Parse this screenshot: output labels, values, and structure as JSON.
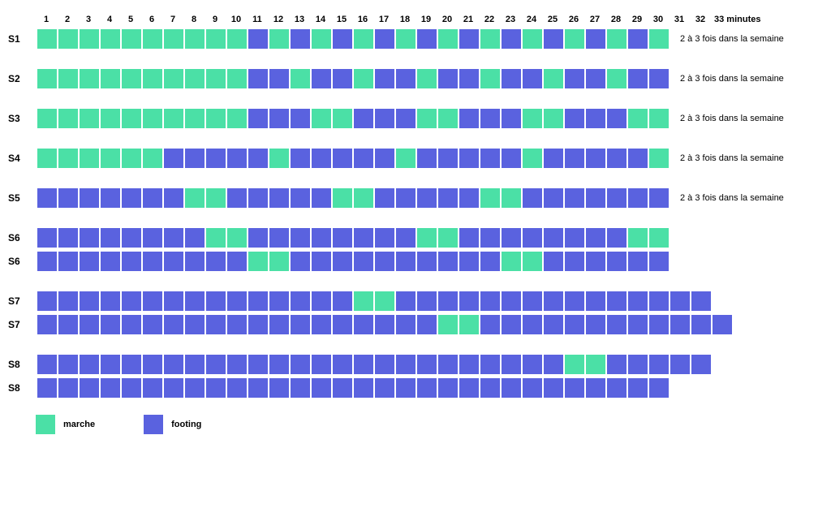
{
  "colors": {
    "marche": "#4be0a6",
    "footing": "#5a62df",
    "background": "#ffffff",
    "text": "#000000"
  },
  "cell": {
    "width": 24,
    "height": 24,
    "gap": 2
  },
  "header": {
    "count": 32,
    "last_label": "33 minutes"
  },
  "legend": {
    "items": [
      {
        "key": "marche",
        "label": "marche"
      },
      {
        "key": "footing",
        "label": "footing"
      }
    ]
  },
  "note_text": "2 à 3 fois dans la semaine",
  "rows": [
    {
      "label": "S1",
      "gap": "first",
      "note": true,
      "cells": [
        "m",
        "m",
        "m",
        "m",
        "m",
        "m",
        "m",
        "m",
        "m",
        "m",
        "f",
        "m",
        "f",
        "m",
        "f",
        "m",
        "f",
        "m",
        "f",
        "m",
        "f",
        "m",
        "f",
        "m",
        "f",
        "m",
        "f",
        "m",
        "f",
        "m"
      ]
    },
    {
      "label": "S2",
      "gap": "large",
      "note": true,
      "cells": [
        "m",
        "m",
        "m",
        "m",
        "m",
        "m",
        "m",
        "m",
        "m",
        "m",
        "f",
        "f",
        "m",
        "f",
        "f",
        "m",
        "f",
        "f",
        "m",
        "f",
        "f",
        "m",
        "f",
        "f",
        "m",
        "f",
        "f",
        "m",
        "f",
        "f"
      ]
    },
    {
      "label": "S3",
      "gap": "large",
      "note": true,
      "cells": [
        "m",
        "m",
        "m",
        "m",
        "m",
        "m",
        "m",
        "m",
        "m",
        "m",
        "f",
        "f",
        "f",
        "m",
        "m",
        "f",
        "f",
        "f",
        "m",
        "m",
        "f",
        "f",
        "f",
        "m",
        "m",
        "f",
        "f",
        "f",
        "m",
        "m"
      ]
    },
    {
      "label": "S4",
      "gap": "large",
      "note": true,
      "cells": [
        "m",
        "m",
        "m",
        "m",
        "m",
        "m",
        "f",
        "f",
        "f",
        "f",
        "f",
        "m",
        "f",
        "f",
        "f",
        "f",
        "f",
        "m",
        "f",
        "f",
        "f",
        "f",
        "f",
        "m",
        "f",
        "f",
        "f",
        "f",
        "f",
        "m"
      ]
    },
    {
      "label": "S5",
      "gap": "large",
      "note": true,
      "cells": [
        "f",
        "f",
        "f",
        "f",
        "f",
        "f",
        "f",
        "m",
        "m",
        "f",
        "f",
        "f",
        "f",
        "f",
        "m",
        "m",
        "f",
        "f",
        "f",
        "f",
        "f",
        "m",
        "m",
        "f",
        "f",
        "f",
        "f",
        "f",
        "f",
        "f"
      ]
    },
    {
      "label": "S6",
      "gap": "large",
      "note": false,
      "cells": [
        "f",
        "f",
        "f",
        "f",
        "f",
        "f",
        "f",
        "f",
        "m",
        "m",
        "f",
        "f",
        "f",
        "f",
        "f",
        "f",
        "f",
        "f",
        "m",
        "m",
        "f",
        "f",
        "f",
        "f",
        "f",
        "f",
        "f",
        "f",
        "m",
        "m"
      ]
    },
    {
      "label": "S6",
      "gap": "small",
      "note": false,
      "cells": [
        "f",
        "f",
        "f",
        "f",
        "f",
        "f",
        "f",
        "f",
        "f",
        "f",
        "m",
        "m",
        "f",
        "f",
        "f",
        "f",
        "f",
        "f",
        "f",
        "f",
        "f",
        "f",
        "m",
        "m",
        "f",
        "f",
        "f",
        "f",
        "f",
        "f"
      ]
    },
    {
      "label": "S7",
      "gap": "large",
      "note": false,
      "cells": [
        "f",
        "f",
        "f",
        "f",
        "f",
        "f",
        "f",
        "f",
        "f",
        "f",
        "f",
        "f",
        "f",
        "f",
        "f",
        "m",
        "m",
        "f",
        "f",
        "f",
        "f",
        "f",
        "f",
        "f",
        "f",
        "f",
        "f",
        "f",
        "f",
        "f",
        "f",
        "f"
      ]
    },
    {
      "label": "S7",
      "gap": "small",
      "note": false,
      "cells": [
        "f",
        "f",
        "f",
        "f",
        "f",
        "f",
        "f",
        "f",
        "f",
        "f",
        "f",
        "f",
        "f",
        "f",
        "f",
        "f",
        "f",
        "f",
        "f",
        "m",
        "m",
        "f",
        "f",
        "f",
        "f",
        "f",
        "f",
        "f",
        "f",
        "f",
        "f",
        "f",
        "f"
      ]
    },
    {
      "label": "S8",
      "gap": "large",
      "note": false,
      "cells": [
        "f",
        "f",
        "f",
        "f",
        "f",
        "f",
        "f",
        "f",
        "f",
        "f",
        "f",
        "f",
        "f",
        "f",
        "f",
        "f",
        "f",
        "f",
        "f",
        "f",
        "f",
        "f",
        "f",
        "f",
        "f",
        "m",
        "m",
        "f",
        "f",
        "f",
        "f",
        "f"
      ]
    },
    {
      "label": "S8",
      "gap": "small",
      "note": false,
      "cells": [
        "f",
        "f",
        "f",
        "f",
        "f",
        "f",
        "f",
        "f",
        "f",
        "f",
        "f",
        "f",
        "f",
        "f",
        "f",
        "f",
        "f",
        "f",
        "f",
        "f",
        "f",
        "f",
        "f",
        "f",
        "f",
        "f",
        "f",
        "f",
        "f",
        "f"
      ]
    }
  ]
}
